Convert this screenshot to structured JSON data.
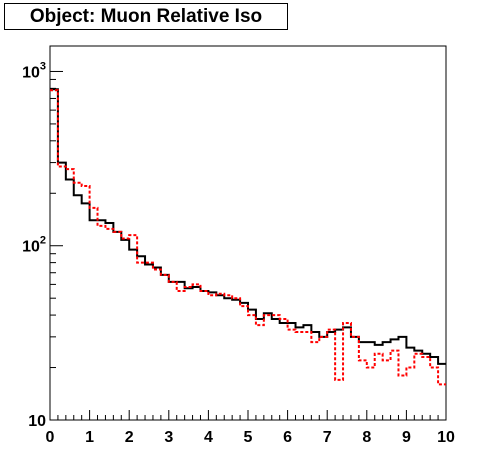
{
  "title": "Object: Muon Relative Iso",
  "chart_data": {
    "type": "histogram",
    "title": "Object: Muon Relative Iso",
    "xlabel": "",
    "ylabel": "",
    "xlim": [
      0,
      10
    ],
    "ylim": [
      10,
      1400
    ],
    "yscale": "log",
    "x_ticks": [
      "0",
      "1",
      "2",
      "3",
      "4",
      "5",
      "6",
      "7",
      "8",
      "9",
      "10"
    ],
    "y_ticks": [
      {
        "value": 10,
        "base": "10",
        "exp": ""
      },
      {
        "value": 100,
        "base": "10",
        "exp": "2"
      },
      {
        "value": 1000,
        "base": "10",
        "exp": "3"
      }
    ],
    "bin_width": 0.2,
    "colors": {
      "series1": "#000000",
      "series2": "#ff0000"
    },
    "series": [
      {
        "style": "solid",
        "color": "#000000",
        "values": [
          790,
          300,
          240,
          195,
          175,
          140,
          140,
          135,
          120,
          108,
          95,
          87,
          78,
          75,
          68,
          62,
          62,
          57,
          58,
          55,
          54,
          52,
          50,
          49,
          47,
          43,
          38,
          41,
          38,
          36,
          36,
          34,
          35,
          32,
          30,
          32,
          33,
          34,
          30,
          28,
          28,
          27,
          28,
          29,
          30,
          26,
          25,
          24,
          23,
          21
        ]
      },
      {
        "style": "dashed",
        "color": "#ff0000",
        "values": [
          780,
          285,
          275,
          230,
          220,
          165,
          130,
          125,
          120,
          110,
          115,
          80,
          80,
          73,
          68,
          62,
          55,
          58,
          60,
          55,
          52,
          53,
          52,
          50,
          45,
          40,
          35,
          40,
          40,
          38,
          33,
          32,
          32,
          28,
          30,
          33,
          17,
          36,
          30,
          22,
          20,
          24,
          22,
          25,
          18,
          20,
          24,
          23,
          20,
          16
        ]
      }
    ]
  }
}
